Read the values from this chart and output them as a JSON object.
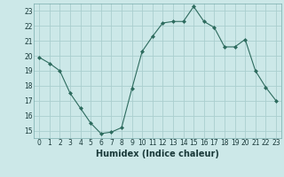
{
  "x": [
    0,
    1,
    2,
    3,
    4,
    5,
    6,
    7,
    8,
    9,
    10,
    11,
    12,
    13,
    14,
    15,
    16,
    17,
    18,
    19,
    20,
    21,
    22,
    23
  ],
  "y": [
    19.9,
    19.5,
    19.0,
    17.5,
    16.5,
    15.5,
    14.8,
    14.9,
    15.2,
    17.8,
    20.3,
    21.3,
    22.2,
    22.3,
    22.3,
    23.3,
    22.3,
    21.9,
    20.6,
    20.6,
    21.1,
    19.0,
    17.9,
    17.0
  ],
  "line_color": "#2d6b5e",
  "marker": "D",
  "marker_size": 2.0,
  "bg_color": "#cce8e8",
  "grid_color": "#aacece",
  "xlabel": "Humidex (Indice chaleur)",
  "xlim": [
    -0.5,
    23.5
  ],
  "ylim": [
    14.5,
    23.5
  ],
  "yticks": [
    15,
    16,
    17,
    18,
    19,
    20,
    21,
    22,
    23
  ],
  "xticks": [
    0,
    1,
    2,
    3,
    4,
    5,
    6,
    7,
    8,
    9,
    10,
    11,
    12,
    13,
    14,
    15,
    16,
    17,
    18,
    19,
    20,
    21,
    22,
    23
  ],
  "tick_fontsize": 5.5,
  "xlabel_fontsize": 7.0
}
